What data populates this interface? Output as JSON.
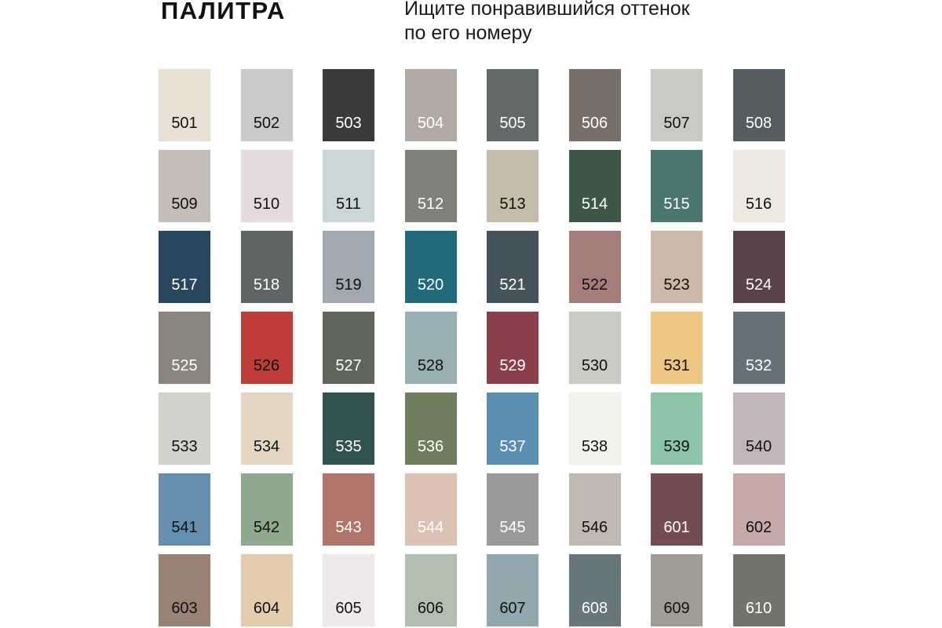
{
  "header": {
    "title": "ПАЛИТРА",
    "subtitle_line1": "Ищите понравившийся оттенок",
    "subtitle_line2": "по его номеру"
  },
  "palette": [
    {
      "number": "501",
      "color": "#e9dfd2",
      "text_color": "#111111"
    },
    {
      "number": "502",
      "color": "#cbcac8",
      "text_color": "#111111"
    },
    {
      "number": "503",
      "color": "#3a3a3a",
      "text_color": "#ffffff"
    },
    {
      "number": "504",
      "color": "#b1aaa4",
      "text_color": "#ffffff"
    },
    {
      "number": "505",
      "color": "#636a69",
      "text_color": "#ffffff"
    },
    {
      "number": "506",
      "color": "#786f69",
      "text_color": "#ffffff"
    },
    {
      "number": "507",
      "color": "#c8cac4",
      "text_color": "#111111"
    },
    {
      "number": "508",
      "color": "#545e61",
      "text_color": "#ffffff"
    },
    {
      "number": "509",
      "color": "#c5bdb7",
      "text_color": "#111111"
    },
    {
      "number": "510",
      "color": "#e5dadf",
      "text_color": "#111111"
    },
    {
      "number": "511",
      "color": "#cbd6d6",
      "text_color": "#111111"
    },
    {
      "number": "512",
      "color": "#7f827a",
      "text_color": "#ffffff"
    },
    {
      "number": "513",
      "color": "#c6bcab",
      "text_color": "#111111"
    },
    {
      "number": "514",
      "color": "#3d5646",
      "text_color": "#ffffff"
    },
    {
      "number": "515",
      "color": "#4a766f",
      "text_color": "#ffffff"
    },
    {
      "number": "516",
      "color": "#ede8e0",
      "text_color": "#111111"
    },
    {
      "number": "517",
      "color": "#28475c",
      "text_color": "#ffffff"
    },
    {
      "number": "518",
      "color": "#5e6564",
      "text_color": "#ffffff"
    },
    {
      "number": "519",
      "color": "#a0a9b1",
      "text_color": "#111111"
    },
    {
      "number": "520",
      "color": "#216a7c",
      "text_color": "#ffffff"
    },
    {
      "number": "521",
      "color": "#44535c",
      "text_color": "#ffffff"
    },
    {
      "number": "522",
      "color": "#a57e7c",
      "text_color": "#111111"
    },
    {
      "number": "523",
      "color": "#ccb9aa",
      "text_color": "#111111"
    },
    {
      "number": "524",
      "color": "#5a424b",
      "text_color": "#ffffff"
    },
    {
      "number": "525",
      "color": "#8a847f",
      "text_color": "#ffffff"
    },
    {
      "number": "526",
      "color": "#bf3d38",
      "text_color": "#111111"
    },
    {
      "number": "527",
      "color": "#5f655a",
      "text_color": "#ffffff"
    },
    {
      "number": "528",
      "color": "#98b0b4",
      "text_color": "#111111"
    },
    {
      "number": "529",
      "color": "#8a404b",
      "text_color": "#ffffff"
    },
    {
      "number": "530",
      "color": "#c9cac4",
      "text_color": "#111111"
    },
    {
      "number": "531",
      "color": "#edc684",
      "text_color": "#111111"
    },
    {
      "number": "532",
      "color": "#667279",
      "text_color": "#ffffff"
    },
    {
      "number": "533",
      "color": "#d3d3cd",
      "text_color": "#111111"
    },
    {
      "number": "534",
      "color": "#e5d6c3",
      "text_color": "#111111"
    },
    {
      "number": "535",
      "color": "#32524f",
      "text_color": "#ffffff"
    },
    {
      "number": "536",
      "color": "#6f7d5f",
      "text_color": "#ffffff"
    },
    {
      "number": "537",
      "color": "#5b8eb0",
      "text_color": "#ffffff"
    },
    {
      "number": "538",
      "color": "#f2f1ec",
      "text_color": "#111111"
    },
    {
      "number": "539",
      "color": "#8cc4a8",
      "text_color": "#111111"
    },
    {
      "number": "540",
      "color": "#c3b4b8",
      "text_color": "#111111"
    },
    {
      "number": "541",
      "color": "#648fb1",
      "text_color": "#111111"
    },
    {
      "number": "542",
      "color": "#8fa88e",
      "text_color": "#111111"
    },
    {
      "number": "543",
      "color": "#b1746a",
      "text_color": "#ffffff"
    },
    {
      "number": "544",
      "color": "#dcc1b5",
      "text_color": "#ffffff"
    },
    {
      "number": "545",
      "color": "#9a9a98",
      "text_color": "#ffffff"
    },
    {
      "number": "546",
      "color": "#c0b9b2",
      "text_color": "#111111"
    },
    {
      "number": "601",
      "color": "#734d51",
      "text_color": "#ffffff"
    },
    {
      "number": "602",
      "color": "#c4a9a7",
      "text_color": "#111111"
    },
    {
      "number": "603",
      "color": "#9a8277",
      "text_color": "#111111"
    },
    {
      "number": "604",
      "color": "#e4ccae",
      "text_color": "#111111"
    },
    {
      "number": "605",
      "color": "#efeaea",
      "text_color": "#111111"
    },
    {
      "number": "606",
      "color": "#b3bfae",
      "text_color": "#111111"
    },
    {
      "number": "607",
      "color": "#93a7ae",
      "text_color": "#111111"
    },
    {
      "number": "608",
      "color": "#68767e",
      "text_color": "#ffffff"
    },
    {
      "number": "609",
      "color": "#a29c96",
      "text_color": "#111111"
    },
    {
      "number": "610",
      "color": "#72746c",
      "text_color": "#ffffff"
    }
  ]
}
